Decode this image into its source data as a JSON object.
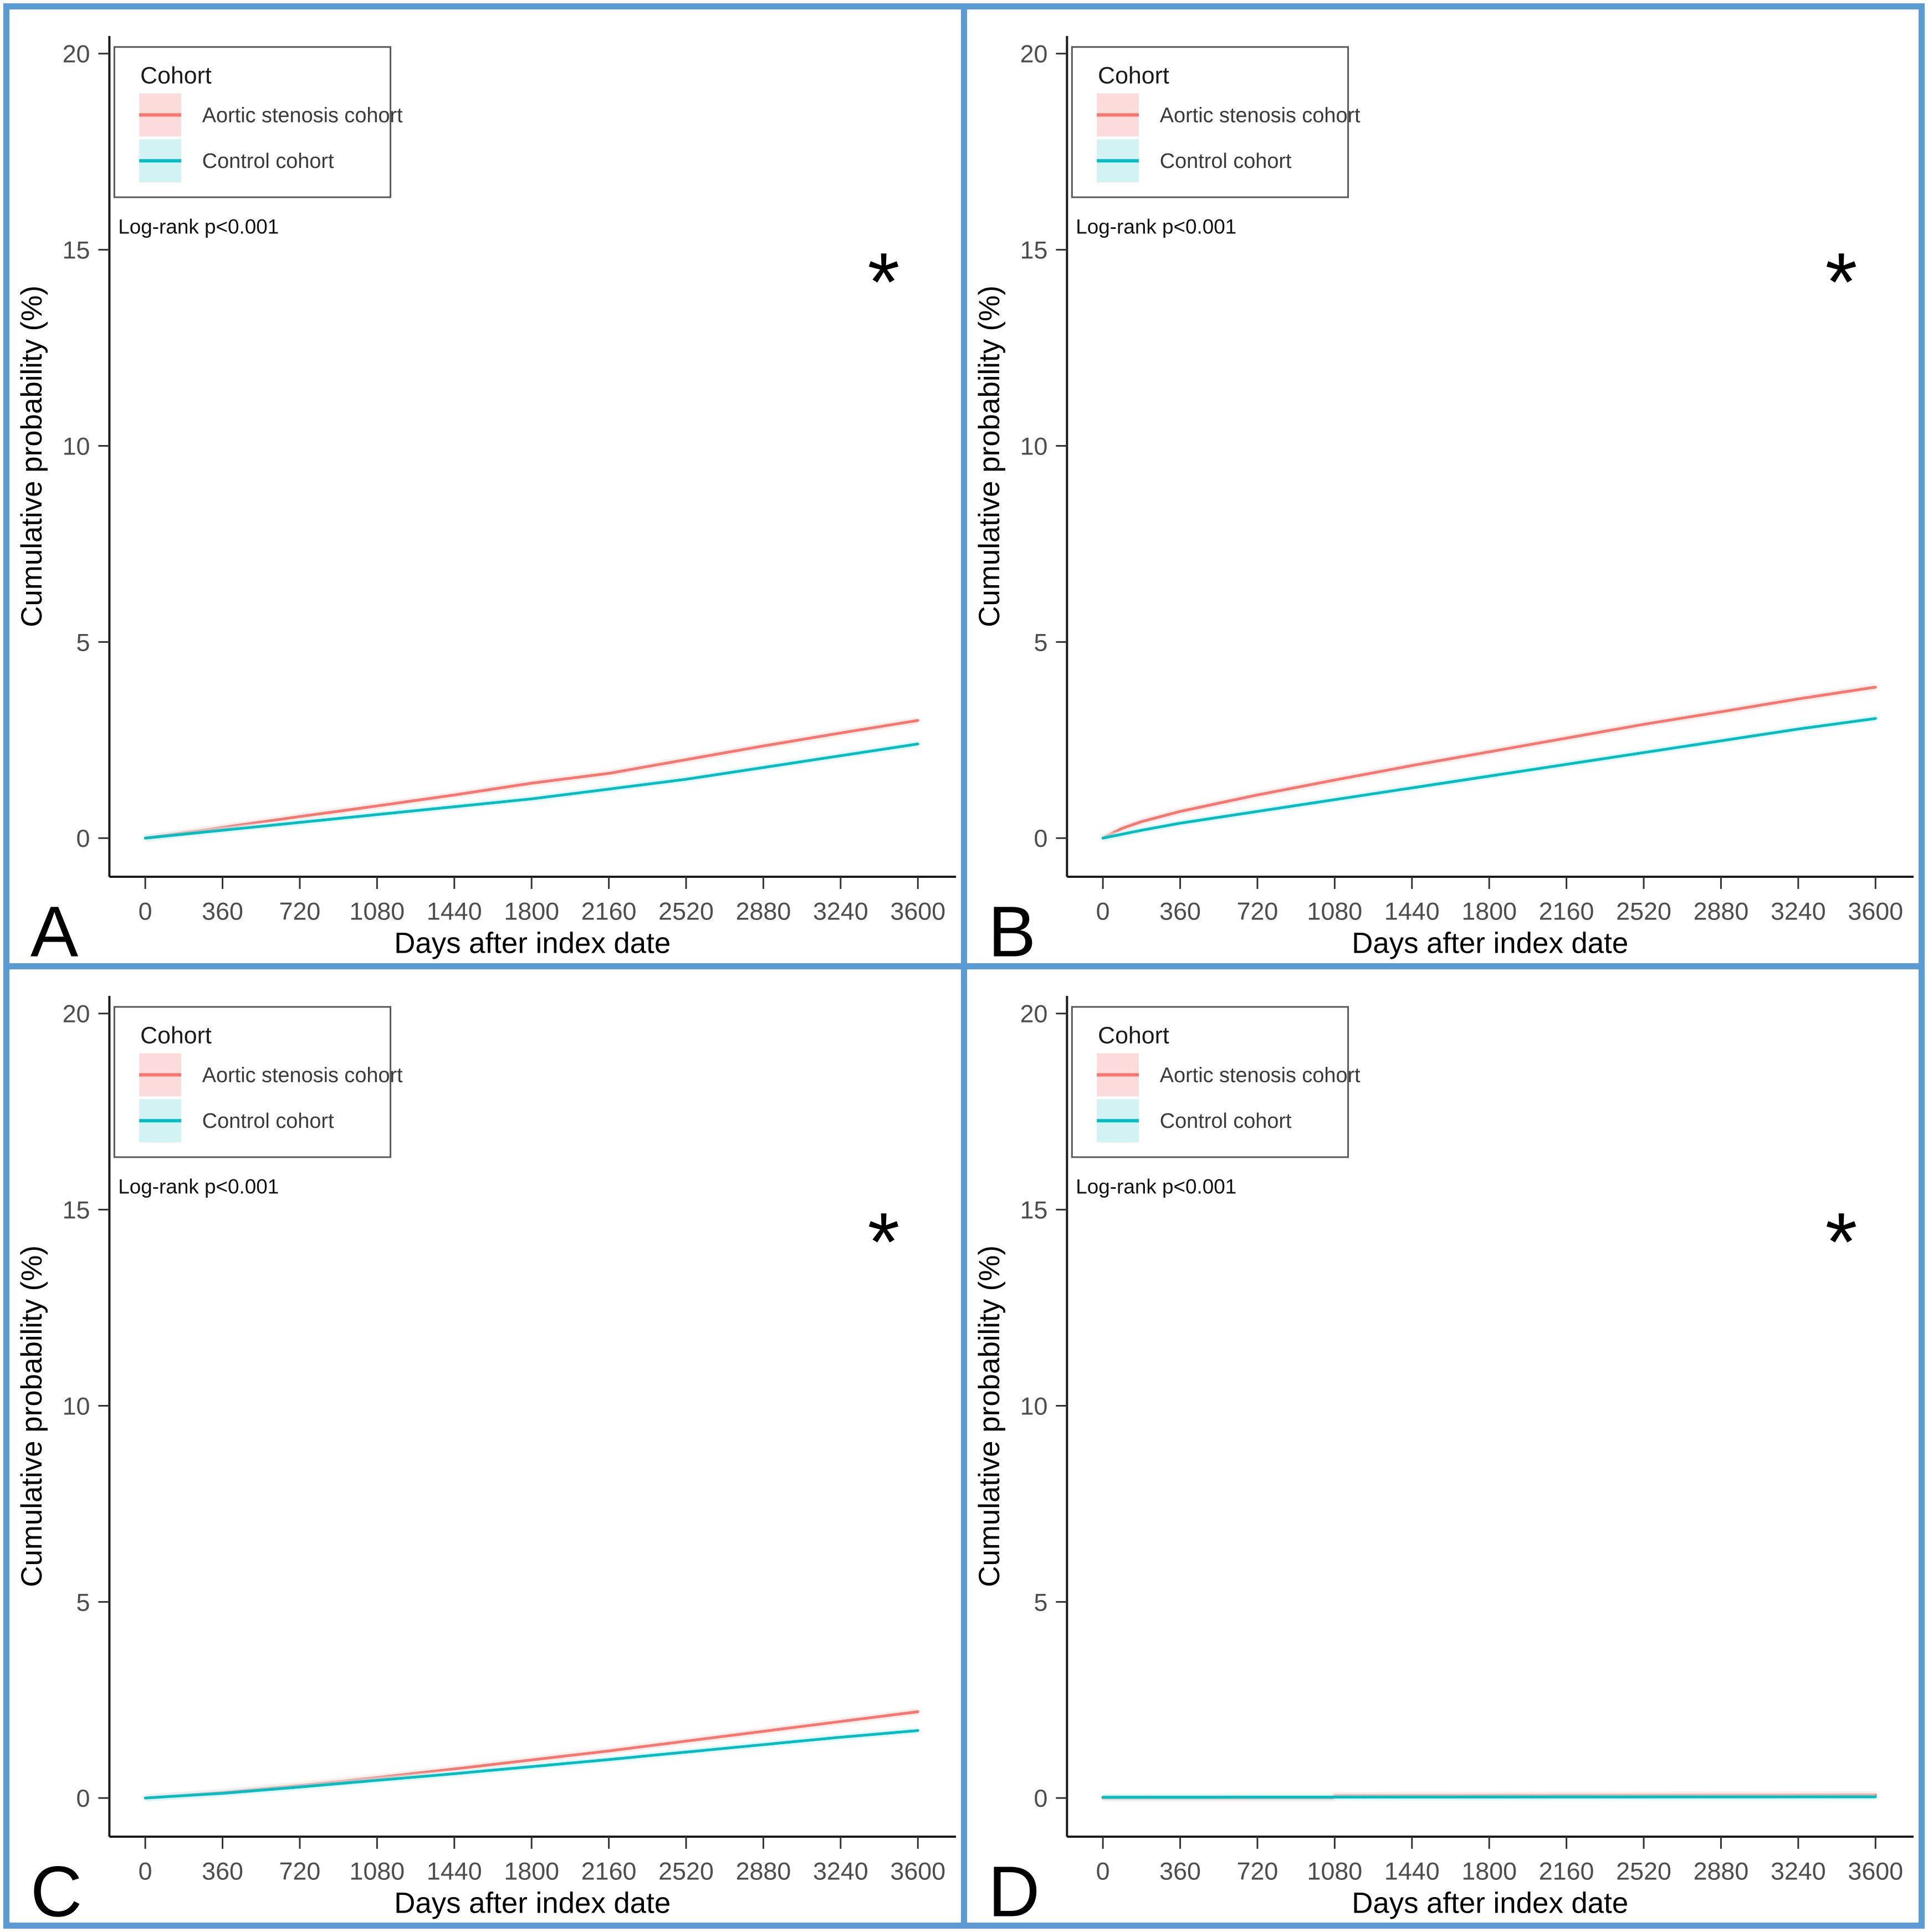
{
  "figure": {
    "frame_color": "#5B9BD5",
    "xlabel": "Days after index date",
    "ylabel": "Cumulative probability (%)",
    "x_ticks": [
      0,
      360,
      720,
      1080,
      1440,
      1800,
      2160,
      2520,
      2880,
      3240,
      3600
    ],
    "y_ticks": [
      0,
      5,
      10,
      15,
      20
    ],
    "legend": {
      "title": "Cohort",
      "items": [
        {
          "label": "Aortic stenosis cohort",
          "color": "#F8766D",
          "fill": "#FBDCDA"
        },
        {
          "label": "Control cohort",
          "color": "#00BFC4",
          "fill": "#D2F3F4"
        }
      ]
    }
  },
  "chart_data": [
    {
      "panel_label": "A",
      "type": "line",
      "title": "",
      "xlabel": "Days after index date",
      "ylabel": "Cumulative probability (%)",
      "xlim": [
        0,
        3600
      ],
      "ylim": [
        0,
        21
      ],
      "x_ticks": [
        0,
        360,
        720,
        1080,
        1440,
        1800,
        2160,
        2520,
        2880,
        3240,
        3600
      ],
      "y_ticks": [
        0,
        5,
        10,
        15,
        20
      ],
      "annotation": "Log-rank p<0.001",
      "significance": "*",
      "legend_position": "top-left",
      "grid": false,
      "series": [
        {
          "name": "Aortic stenosis cohort",
          "color": "#F8766D",
          "band_color": "#FBDCDA",
          "x": [
            0,
            360,
            720,
            1080,
            1440,
            1800,
            2160,
            2520,
            2880,
            3240,
            3600
          ],
          "y": [
            0,
            0.27,
            0.55,
            0.82,
            1.1,
            1.4,
            1.65,
            2.0,
            2.35,
            2.68,
            3.0
          ]
        },
        {
          "name": "Control cohort",
          "color": "#00BFC4",
          "band_color": "#D2F3F4",
          "x": [
            0,
            360,
            720,
            1080,
            1440,
            1800,
            2160,
            2520,
            2880,
            3240,
            3600
          ],
          "y": [
            0,
            0.2,
            0.4,
            0.6,
            0.8,
            1.0,
            1.25,
            1.5,
            1.8,
            2.1,
            2.4
          ]
        }
      ]
    },
    {
      "panel_label": "B",
      "type": "line",
      "title": "",
      "xlabel": "Days after index date",
      "ylabel": "Cumulative probability (%)",
      "xlim": [
        0,
        3600
      ],
      "ylim": [
        0,
        21
      ],
      "x_ticks": [
        0,
        360,
        720,
        1080,
        1440,
        1800,
        2160,
        2520,
        2880,
        3240,
        3600
      ],
      "y_ticks": [
        0,
        5,
        10,
        15,
        20
      ],
      "annotation": "Log-rank p<0.001",
      "significance": "*",
      "legend_position": "top-left",
      "grid": false,
      "series": [
        {
          "name": "Aortic stenosis cohort",
          "color": "#F8766D",
          "band_color": "#FBDCDA",
          "x": [
            0,
            90,
            180,
            360,
            720,
            1080,
            1440,
            1800,
            2160,
            2520,
            2880,
            3240,
            3600
          ],
          "y": [
            0,
            0.25,
            0.42,
            0.68,
            1.1,
            1.48,
            1.85,
            2.2,
            2.55,
            2.9,
            3.22,
            3.55,
            3.85
          ]
        },
        {
          "name": "Control cohort",
          "color": "#00BFC4",
          "band_color": "#D2F3F4",
          "x": [
            0,
            90,
            180,
            360,
            720,
            1080,
            1440,
            1800,
            2160,
            2520,
            2880,
            3240,
            3600
          ],
          "y": [
            0,
            0.1,
            0.2,
            0.38,
            0.68,
            0.98,
            1.28,
            1.58,
            1.88,
            2.18,
            2.48,
            2.78,
            3.05
          ]
        }
      ]
    },
    {
      "panel_label": "C",
      "type": "line",
      "title": "",
      "xlabel": "Days after index date",
      "ylabel": "Cumulative probability (%)",
      "xlim": [
        0,
        3600
      ],
      "ylim": [
        0,
        21
      ],
      "x_ticks": [
        0,
        360,
        720,
        1080,
        1440,
        1800,
        2160,
        2520,
        2880,
        3240,
        3600
      ],
      "y_ticks": [
        0,
        5,
        10,
        15,
        20
      ],
      "annotation": "Log-rank p<0.001",
      "significance": "*",
      "legend_position": "top-left",
      "grid": false,
      "series": [
        {
          "name": "Aortic stenosis cohort",
          "color": "#F8766D",
          "band_color": "#FBDCDA",
          "x": [
            0,
            360,
            720,
            1080,
            1440,
            1800,
            2160,
            2520,
            2880,
            3240,
            3600
          ],
          "y": [
            0,
            0.14,
            0.32,
            0.52,
            0.74,
            0.97,
            1.2,
            1.45,
            1.7,
            1.95,
            2.2
          ]
        },
        {
          "name": "Control cohort",
          "color": "#00BFC4",
          "band_color": "#D2F3F4",
          "x": [
            0,
            360,
            720,
            1080,
            1440,
            1800,
            2160,
            2520,
            2880,
            3240,
            3600
          ],
          "y": [
            0,
            0.12,
            0.28,
            0.45,
            0.62,
            0.8,
            0.98,
            1.17,
            1.36,
            1.55,
            1.72
          ]
        }
      ]
    },
    {
      "panel_label": "D",
      "type": "line",
      "title": "",
      "xlabel": "Days after index date",
      "ylabel": "Cumulative probability (%)",
      "xlim": [
        0,
        3600
      ],
      "ylim": [
        0,
        21
      ],
      "x_ticks": [
        0,
        360,
        720,
        1080,
        1440,
        1800,
        2160,
        2520,
        2880,
        3240,
        3600
      ],
      "y_ticks": [
        0,
        5,
        10,
        15,
        20
      ],
      "annotation": "Log-rank p<0.001",
      "significance": "*",
      "legend_position": "top-left",
      "grid": false,
      "series": [
        {
          "name": "Aortic stenosis cohort",
          "color": "#F8766D",
          "band_color": "#FBDCDA",
          "x": [
            0,
            1070,
            1080,
            3600
          ],
          "y": [
            0,
            0,
            0.06,
            0.08
          ]
        },
        {
          "name": "Control cohort",
          "color": "#00BFC4",
          "band_color": "#D2F3F4",
          "x": [
            0,
            3600
          ],
          "y": [
            0.02,
            0.03
          ]
        }
      ]
    }
  ]
}
